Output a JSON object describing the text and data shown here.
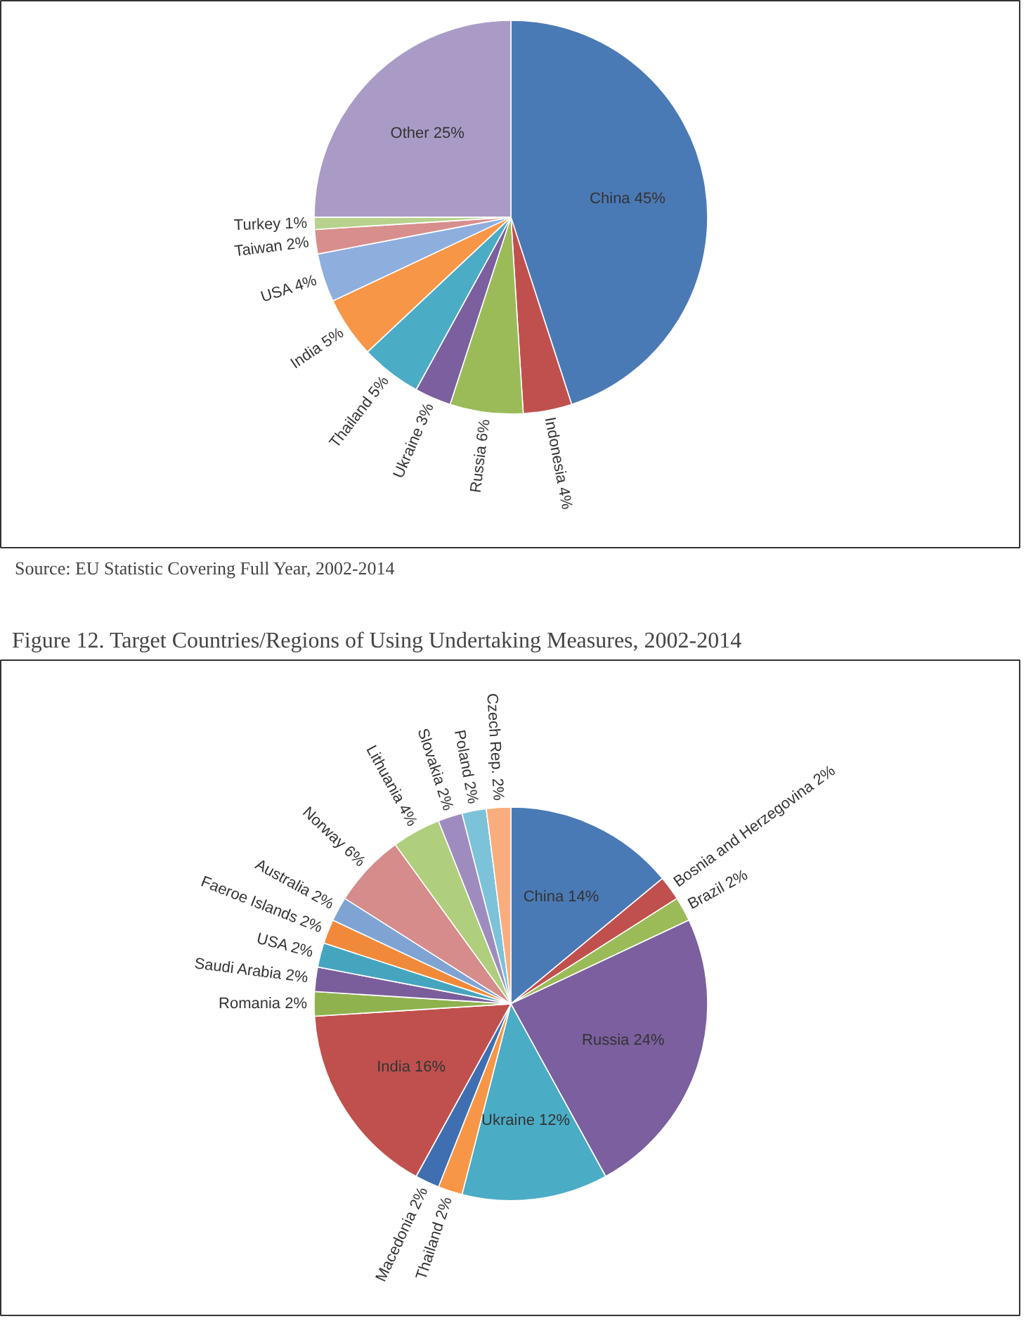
{
  "chart_data": [
    {
      "type": "pie",
      "categories": [
        "China",
        "Indonesia",
        "Russia",
        "Ukraine",
        "Thailand",
        "India",
        "USA",
        "Taiwan",
        "Turkey",
        "Other"
      ],
      "values": [
        45,
        4,
        6,
        3,
        5,
        5,
        4,
        2,
        1,
        25
      ],
      "value_labels": [
        "45%",
        "4%",
        "6%",
        "3%",
        "5%",
        "5%",
        "4%",
        "2%",
        "1%",
        "25%"
      ],
      "colors": [
        "#4a7ab5",
        "#c0504d",
        "#9bbb59",
        "#7b5f9e",
        "#4bacc6",
        "#f79646",
        "#8eaede",
        "#d88e8c",
        "#b7d28c",
        "#a99bc6"
      ],
      "annotations": [
        "Source: EU Statistic Covering Full Year, 2002-2014"
      ]
    },
    {
      "type": "pie",
      "title": "Figure 12. Target Countries/Regions of Using Undertaking Measures, 2002-2014",
      "categories": [
        "China",
        "Bosnia and Herzegovina",
        "Brazil",
        "Russia",
        "Ukraine",
        "Thailand",
        "Macedonia",
        "India",
        "Romania",
        "Saudi Arabia",
        "USA",
        "Faeroe Islands",
        "Australia",
        "Norway",
        "Lithuania",
        "Slovakia",
        "Poland",
        "Czech Rep."
      ],
      "values": [
        14,
        2,
        2,
        24,
        12,
        2,
        2,
        16,
        2,
        2,
        2,
        2,
        2,
        6,
        4,
        2,
        2,
        2
      ],
      "value_labels": [
        "14%",
        "2%",
        "2%",
        "24%",
        "12%",
        "2%",
        "2%",
        "16%",
        "2%",
        "2%",
        "2%",
        "2%",
        "2%",
        "6%",
        "4%",
        "2%",
        "2%",
        "2%"
      ],
      "colors": [
        "#4a7ab5",
        "#c0504d",
        "#9bbb59",
        "#7b5f9e",
        "#4bacc6",
        "#f79646",
        "#3f6fb0",
        "#c0504d",
        "#8fb24e",
        "#7a5e9c",
        "#45a5bf",
        "#f08a3a",
        "#7fa4d4",
        "#d58c8a",
        "#afcf7e",
        "#9f8cbf",
        "#7cc2d8",
        "#f9ad7e"
      ]
    }
  ]
}
